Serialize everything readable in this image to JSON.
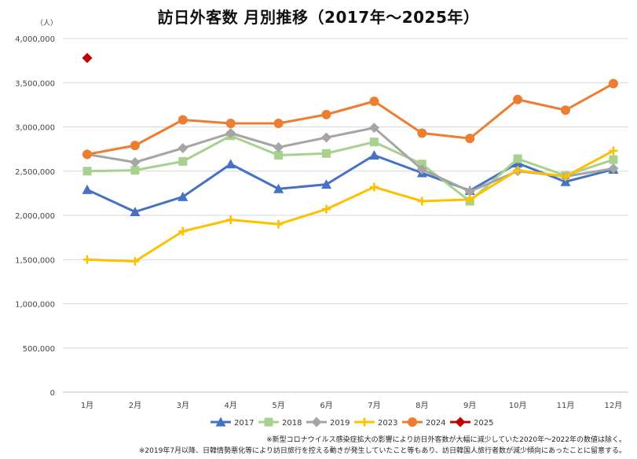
{
  "title": "訪日外客数 月別推移（2017年～2025年）",
  "unit_label": "（人）",
  "notes": [
    "※新型コロナウイルス感染症拡大の影響により訪日外客数が大幅に減少していた2020年～2022年の数値は除く。",
    "※2019年7月以降、日韓情勢悪化等により訪日旅行を控える動きが発生していたこと等もあり、訪日韓国人旅行者数が減少傾向にあったことに留意する。"
  ],
  "chart_data": {
    "type": "line",
    "title": "訪日外客数 月別推移（2017年～2025年）",
    "ylabel": "（人）",
    "xlabel": "",
    "categories": [
      "1月",
      "2月",
      "3月",
      "4月",
      "5月",
      "6月",
      "7月",
      "8月",
      "9月",
      "10月",
      "11月",
      "12月"
    ],
    "ylim": [
      0,
      4000000
    ],
    "yticks": [
      0,
      500000,
      1000000,
      1500000,
      2000000,
      2500000,
      3000000,
      3500000,
      4000000
    ],
    "ytick_labels": [
      "0",
      "500,000",
      "1,000,000",
      "1,500,000",
      "2,000,000",
      "2,500,000",
      "3,000,000",
      "3,500,000",
      "4,000,000"
    ],
    "grid": true,
    "legend_position": "bottom",
    "series": [
      {
        "name": "2017",
        "color": "#4472C4",
        "marker": "triangle",
        "values": [
          2290000,
          2040000,
          2210000,
          2580000,
          2300000,
          2350000,
          2680000,
          2480000,
          2280000,
          2590000,
          2380000,
          2520000
        ]
      },
      {
        "name": "2018",
        "color": "#A9D18E",
        "marker": "square",
        "values": [
          2500000,
          2510000,
          2610000,
          2900000,
          2680000,
          2700000,
          2830000,
          2580000,
          2160000,
          2640000,
          2450000,
          2630000
        ]
      },
      {
        "name": "2019",
        "color": "#A5A5A5",
        "marker": "diamond",
        "values": [
          2690000,
          2600000,
          2760000,
          2930000,
          2770000,
          2880000,
          2990000,
          2520000,
          2270000,
          2500000,
          2440000,
          2530000
        ]
      },
      {
        "name": "2023",
        "color": "#FFC000",
        "marker": "plus",
        "values": [
          1500000,
          1480000,
          1820000,
          1950000,
          1900000,
          2070000,
          2320000,
          2160000,
          2180000,
          2510000,
          2440000,
          2730000
        ]
      },
      {
        "name": "2024",
        "color": "#ED7D31",
        "marker": "circle",
        "values": [
          2690000,
          2790000,
          3080000,
          3040000,
          3040000,
          3140000,
          3290000,
          2930000,
          2870000,
          3310000,
          3190000,
          3490000
        ]
      },
      {
        "name": "2025",
        "color": "#C00000",
        "marker": "diamond",
        "values": [
          3780000,
          null,
          null,
          null,
          null,
          null,
          null,
          null,
          null,
          null,
          null,
          null
        ]
      }
    ]
  }
}
